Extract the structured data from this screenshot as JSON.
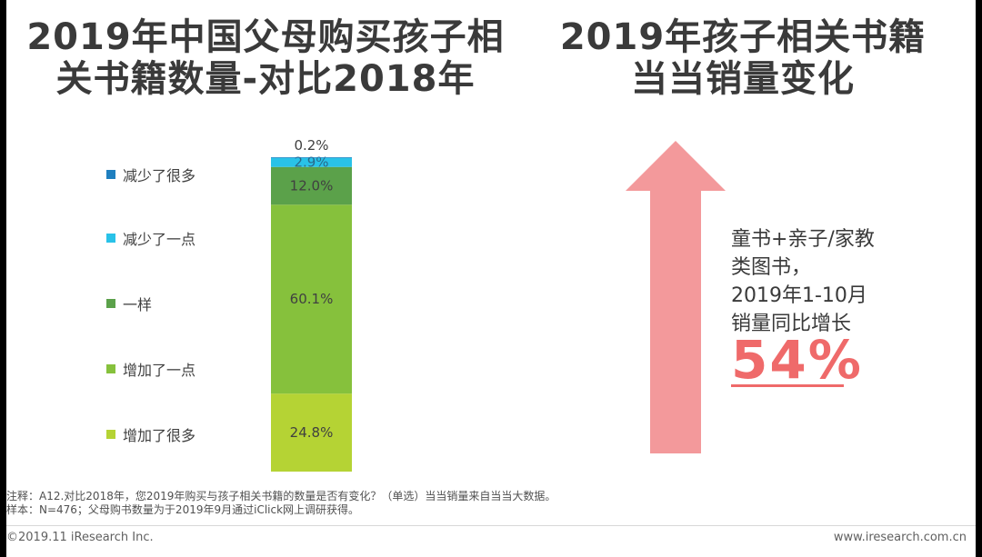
{
  "left_title": {
    "line1": "2019年中国父母购买孩子相",
    "line2": "关书籍数量-对比2018年"
  },
  "right_title": {
    "line1": "2019年孩子相关书籍",
    "line2": "当当销量变化"
  },
  "chart_data": {
    "type": "bar",
    "subtype": "stacked-100",
    "categories": [
      ""
    ],
    "series": [
      {
        "name": "增加了很多",
        "values": [
          24.8
        ],
        "label": "24.8%",
        "color": "#b5d334"
      },
      {
        "name": "增加了一点",
        "values": [
          60.1
        ],
        "label": "60.1%",
        "color": "#86c13c"
      },
      {
        "name": "一样",
        "values": [
          12.0
        ],
        "label": "12.0%",
        "color": "#5ba14a"
      },
      {
        "name": "减少了一点",
        "values": [
          2.9
        ],
        "label": "2.9%",
        "color": "#29c2e8"
      },
      {
        "name": "减少了很多",
        "values": [
          0.2
        ],
        "label": "0.2%",
        "color": "#1f7fbf"
      }
    ],
    "legend_order": [
      "减少了很多",
      "减少了一点",
      "一样",
      "增加了一点",
      "增加了很多"
    ],
    "ylim": [
      0,
      100
    ],
    "legend_position": "left"
  },
  "annotation": {
    "lines": [
      "童书+亲子/家教",
      "类图书，",
      "2019年1-10月",
      "销量同比增长"
    ],
    "value": "54%",
    "arrow_color": "#f3999b",
    "value_color": "#ef6a6a"
  },
  "notes": {
    "line1": "注释：A12.对比2018年，您2019年购买与孩子相关书籍的数量是否有变化？（单选）当当销量来自当当大数据。",
    "line2": "样本：N=476；父母购书数量为于2019年9月通过iClick网上调研获得。"
  },
  "footer": {
    "left": "©2019.11 iResearch Inc.",
    "right": "www.iresearch.com.cn"
  }
}
